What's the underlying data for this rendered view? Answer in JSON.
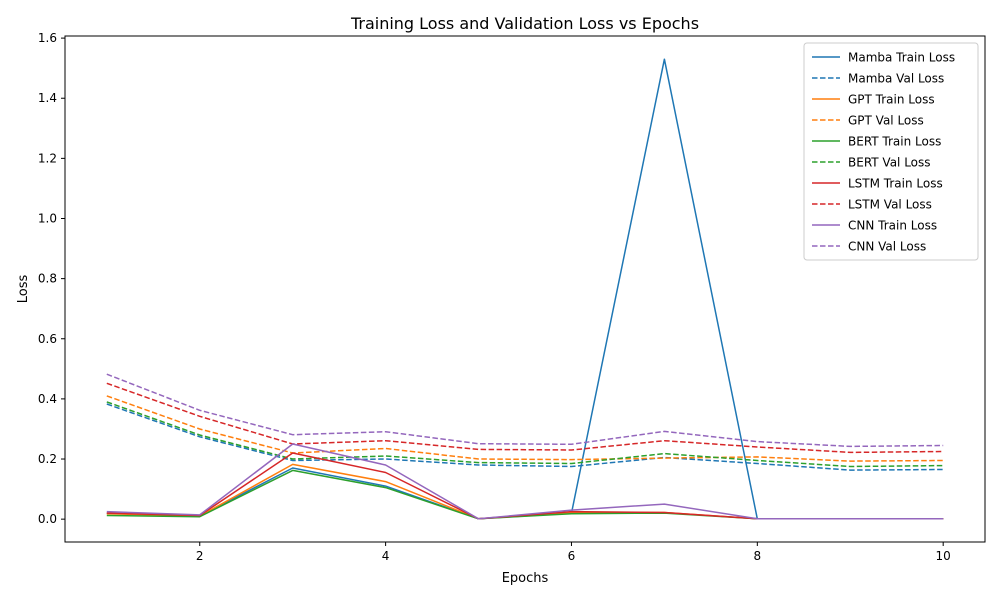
{
  "chart_data": {
    "type": "line",
    "title": "Training Loss and Validation Loss vs Epochs",
    "xlabel": "Epochs",
    "ylabel": "Loss",
    "xlim": [
      0.55,
      10.45
    ],
    "ylim": [
      -0.076,
      1.607
    ],
    "xticks": [
      2,
      4,
      6,
      8,
      10
    ],
    "yticks": [
      0.0,
      0.2,
      0.4,
      0.6,
      0.8,
      1.0,
      1.2,
      1.4,
      1.6
    ],
    "ytick_labels": [
      "0.0",
      "0.2",
      "0.4",
      "0.6",
      "0.8",
      "1.0",
      "1.2",
      "1.4",
      "1.6"
    ],
    "grid": false,
    "legend_position": "top-right",
    "x": [
      1,
      2,
      3,
      4,
      5,
      6,
      7,
      8,
      9,
      10
    ],
    "series": [
      {
        "name": "Mamba Train Loss",
        "color": "#1f77b4",
        "style": "solid",
        "values": [
          0.02,
          0.01,
          0.17,
          0.11,
          0.001,
          0.02,
          1.53,
          0.001,
          0.001,
          0.001
        ]
      },
      {
        "name": "Mamba Val Loss",
        "color": "#1f77b4",
        "style": "dashed",
        "values": [
          0.383,
          0.274,
          0.195,
          0.2,
          0.18,
          0.175,
          0.205,
          0.185,
          0.163,
          0.165
        ]
      },
      {
        "name": "GPT Train Loss",
        "color": "#ff7f0e",
        "style": "solid",
        "values": [
          0.018,
          0.01,
          0.182,
          0.125,
          0.001,
          0.022,
          0.022,
          0.001,
          0.001,
          0.001
        ]
      },
      {
        "name": "GPT Val Loss",
        "color": "#ff7f0e",
        "style": "dashed",
        "values": [
          0.41,
          0.3,
          0.22,
          0.235,
          0.2,
          0.198,
          0.203,
          0.207,
          0.193,
          0.195
        ]
      },
      {
        "name": "BERT Train Loss",
        "color": "#2ca02c",
        "style": "solid",
        "values": [
          0.012,
          0.008,
          0.162,
          0.105,
          0.001,
          0.018,
          0.02,
          0.001,
          0.001,
          0.001
        ]
      },
      {
        "name": "BERT Val Loss",
        "color": "#2ca02c",
        "style": "dashed",
        "values": [
          0.39,
          0.28,
          0.2,
          0.21,
          0.188,
          0.185,
          0.218,
          0.195,
          0.175,
          0.178
        ]
      },
      {
        "name": "LSTM Train Loss",
        "color": "#d62728",
        "style": "solid",
        "values": [
          0.02,
          0.012,
          0.22,
          0.155,
          0.001,
          0.025,
          0.022,
          0.001,
          0.001,
          0.001
        ]
      },
      {
        "name": "LSTM Val Loss",
        "color": "#d62728",
        "style": "dashed",
        "values": [
          0.452,
          0.342,
          0.25,
          0.261,
          0.232,
          0.23,
          0.261,
          0.24,
          0.222,
          0.225
        ]
      },
      {
        "name": "CNN Train Loss",
        "color": "#9467bd",
        "style": "solid",
        "values": [
          0.025,
          0.014,
          0.25,
          0.18,
          0.001,
          0.03,
          0.05,
          0.001,
          0.001,
          0.001
        ]
      },
      {
        "name": "CNN Val Loss",
        "color": "#9467bd",
        "style": "dashed",
        "values": [
          0.482,
          0.362,
          0.281,
          0.291,
          0.251,
          0.249,
          0.292,
          0.258,
          0.242,
          0.245
        ]
      }
    ]
  }
}
